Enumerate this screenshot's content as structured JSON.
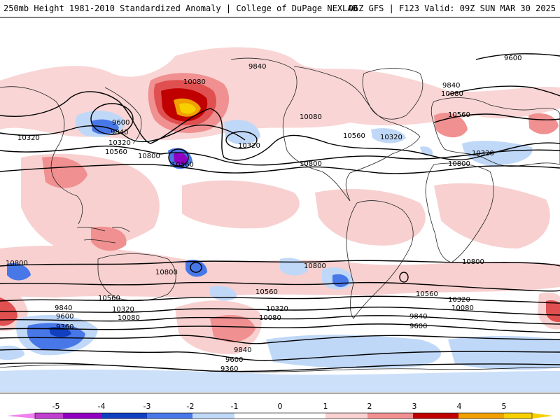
{
  "header": {
    "title": "250mb Height 1981-2010 Standardized Anomaly | College of DuPage NEXLAB",
    "run_info": "06Z GFS | F123 Valid: 09Z SUN MAR 30 2025"
  },
  "map": {
    "contour_labels": [
      "9600",
      "9840",
      "10080",
      "10320",
      "10560",
      "10800",
      "9360"
    ],
    "colors": {
      "neg5": "#f080f0",
      "neg4": "#9000c0",
      "neg3": "#1040c0",
      "neg2": "#4878e8",
      "neg1": "#c0d8f8",
      "zero": "#ffffff",
      "pos1": "#f8d0d0",
      "pos2": "#f09090",
      "pos3": "#e05050",
      "pos4": "#c00000",
      "pos5": "#f0a000",
      "pos6": "#f8d000"
    }
  },
  "colorbar": {
    "ticks": [
      "-5",
      "-4",
      "-3",
      "-2",
      "-1",
      "0",
      "1",
      "2",
      "3",
      "4",
      "5"
    ]
  }
}
